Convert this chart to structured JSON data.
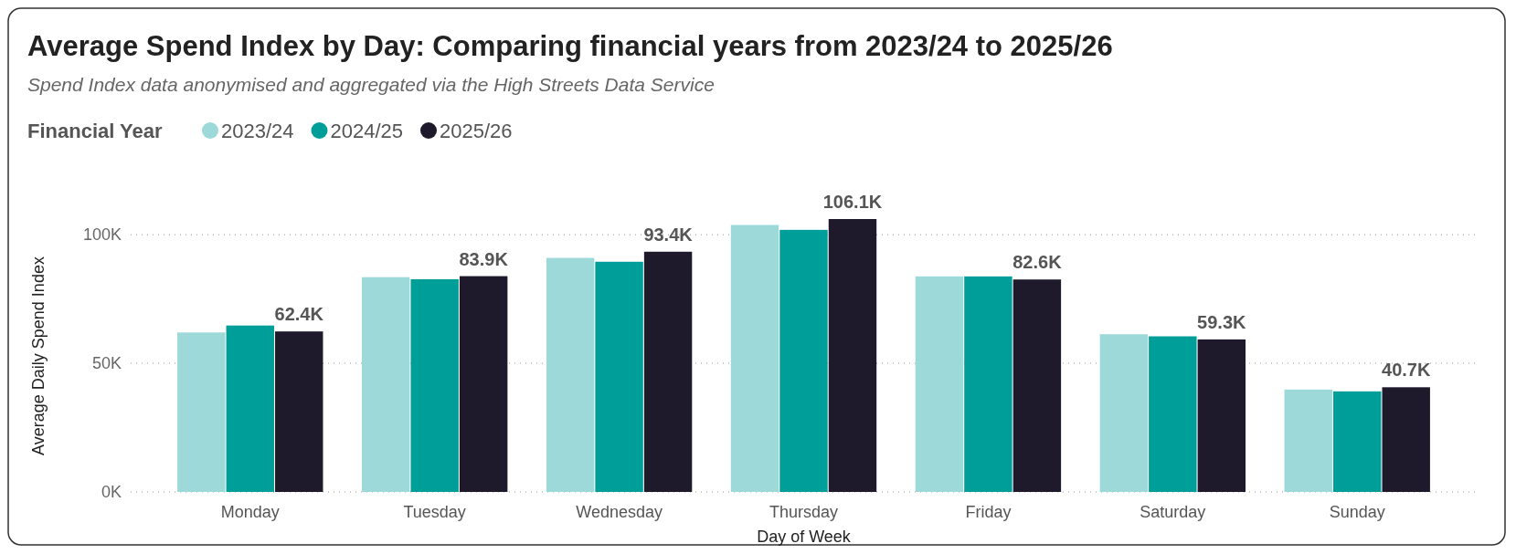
{
  "chart_data": {
    "type": "bar",
    "title": "Average Spend Index by Day: Comparing financial years from 2023/24 to 2025/26",
    "subtitle": "Spend Index data anonymised and aggregated via the High Streets Data Service",
    "xlabel": "Day of Week",
    "ylabel": "Average Daily Spend Index",
    "legend_title": "Financial Year",
    "legend": "top left",
    "grid": "y",
    "categories": [
      "Monday",
      "Tuesday",
      "Wednesday",
      "Thursday",
      "Friday",
      "Saturday",
      "Sunday"
    ],
    "ylim": [
      0,
      106100
    ],
    "yticks": [
      {
        "value": 0,
        "label": "0K"
      },
      {
        "value": 50000,
        "label": "50K"
      },
      {
        "value": 100000,
        "label": "100K"
      }
    ],
    "series": [
      {
        "name": "2023/24",
        "color": "#9dd9d8",
        "values": [
          62000,
          83500,
          91000,
          103800,
          83800,
          61300,
          39800
        ]
      },
      {
        "name": "2024/25",
        "color": "#009e99",
        "values": [
          64700,
          82700,
          89500,
          101900,
          83800,
          60500,
          39100
        ]
      },
      {
        "name": "2025/26",
        "color": "#1e1a2c",
        "values": [
          62400,
          83900,
          93400,
          106100,
          82600,
          59300,
          40700
        ],
        "value_labels": [
          "62.4K",
          "83.9K",
          "93.4K",
          "106.1K",
          "82.6K",
          "59.3K",
          "40.7K"
        ]
      }
    ]
  }
}
